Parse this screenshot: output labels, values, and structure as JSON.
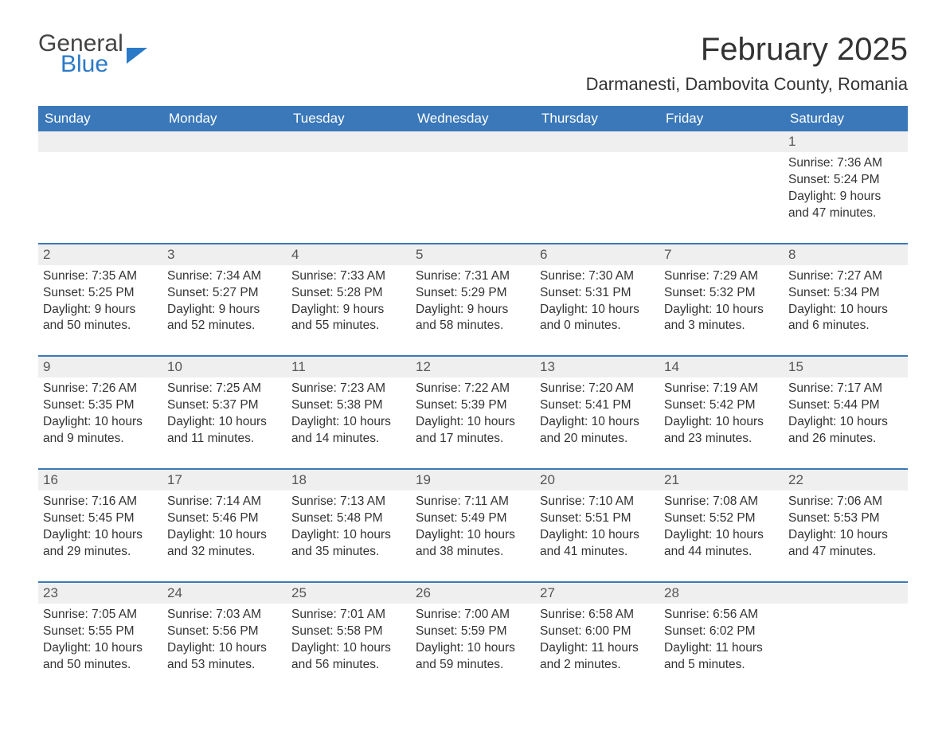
{
  "brand": {
    "part1": "General",
    "part2": "Blue"
  },
  "title": "February 2025",
  "location": "Darmanesti, Dambovita County, Romania",
  "colors": {
    "header_bg": "#3a78b9",
    "header_text": "#ffffff",
    "daynum_bg": "#efefef",
    "row_border": "#3a78b9",
    "body_text": "#333333",
    "brand_blue": "#2b7ac7"
  },
  "fonts": {
    "title_pt": 40,
    "location_pt": 22,
    "header_pt": 17,
    "body_pt": 15.5
  },
  "layout": {
    "columns": 7,
    "rows": 5
  },
  "weekdays": [
    "Sunday",
    "Monday",
    "Tuesday",
    "Wednesday",
    "Thursday",
    "Friday",
    "Saturday"
  ],
  "weeks": [
    [
      null,
      null,
      null,
      null,
      null,
      null,
      {
        "n": "1",
        "sr": "Sunrise: 7:36 AM",
        "ss": "Sunset: 5:24 PM",
        "dl": "Daylight: 9 hours and 47 minutes."
      }
    ],
    [
      {
        "n": "2",
        "sr": "Sunrise: 7:35 AM",
        "ss": "Sunset: 5:25 PM",
        "dl": "Daylight: 9 hours and 50 minutes."
      },
      {
        "n": "3",
        "sr": "Sunrise: 7:34 AM",
        "ss": "Sunset: 5:27 PM",
        "dl": "Daylight: 9 hours and 52 minutes."
      },
      {
        "n": "4",
        "sr": "Sunrise: 7:33 AM",
        "ss": "Sunset: 5:28 PM",
        "dl": "Daylight: 9 hours and 55 minutes."
      },
      {
        "n": "5",
        "sr": "Sunrise: 7:31 AM",
        "ss": "Sunset: 5:29 PM",
        "dl": "Daylight: 9 hours and 58 minutes."
      },
      {
        "n": "6",
        "sr": "Sunrise: 7:30 AM",
        "ss": "Sunset: 5:31 PM",
        "dl": "Daylight: 10 hours and 0 minutes."
      },
      {
        "n": "7",
        "sr": "Sunrise: 7:29 AM",
        "ss": "Sunset: 5:32 PM",
        "dl": "Daylight: 10 hours and 3 minutes."
      },
      {
        "n": "8",
        "sr": "Sunrise: 7:27 AM",
        "ss": "Sunset: 5:34 PM",
        "dl": "Daylight: 10 hours and 6 minutes."
      }
    ],
    [
      {
        "n": "9",
        "sr": "Sunrise: 7:26 AM",
        "ss": "Sunset: 5:35 PM",
        "dl": "Daylight: 10 hours and 9 minutes."
      },
      {
        "n": "10",
        "sr": "Sunrise: 7:25 AM",
        "ss": "Sunset: 5:37 PM",
        "dl": "Daylight: 10 hours and 11 minutes."
      },
      {
        "n": "11",
        "sr": "Sunrise: 7:23 AM",
        "ss": "Sunset: 5:38 PM",
        "dl": "Daylight: 10 hours and 14 minutes."
      },
      {
        "n": "12",
        "sr": "Sunrise: 7:22 AM",
        "ss": "Sunset: 5:39 PM",
        "dl": "Daylight: 10 hours and 17 minutes."
      },
      {
        "n": "13",
        "sr": "Sunrise: 7:20 AM",
        "ss": "Sunset: 5:41 PM",
        "dl": "Daylight: 10 hours and 20 minutes."
      },
      {
        "n": "14",
        "sr": "Sunrise: 7:19 AM",
        "ss": "Sunset: 5:42 PM",
        "dl": "Daylight: 10 hours and 23 minutes."
      },
      {
        "n": "15",
        "sr": "Sunrise: 7:17 AM",
        "ss": "Sunset: 5:44 PM",
        "dl": "Daylight: 10 hours and 26 minutes."
      }
    ],
    [
      {
        "n": "16",
        "sr": "Sunrise: 7:16 AM",
        "ss": "Sunset: 5:45 PM",
        "dl": "Daylight: 10 hours and 29 minutes."
      },
      {
        "n": "17",
        "sr": "Sunrise: 7:14 AM",
        "ss": "Sunset: 5:46 PM",
        "dl": "Daylight: 10 hours and 32 minutes."
      },
      {
        "n": "18",
        "sr": "Sunrise: 7:13 AM",
        "ss": "Sunset: 5:48 PM",
        "dl": "Daylight: 10 hours and 35 minutes."
      },
      {
        "n": "19",
        "sr": "Sunrise: 7:11 AM",
        "ss": "Sunset: 5:49 PM",
        "dl": "Daylight: 10 hours and 38 minutes."
      },
      {
        "n": "20",
        "sr": "Sunrise: 7:10 AM",
        "ss": "Sunset: 5:51 PM",
        "dl": "Daylight: 10 hours and 41 minutes."
      },
      {
        "n": "21",
        "sr": "Sunrise: 7:08 AM",
        "ss": "Sunset: 5:52 PM",
        "dl": "Daylight: 10 hours and 44 minutes."
      },
      {
        "n": "22",
        "sr": "Sunrise: 7:06 AM",
        "ss": "Sunset: 5:53 PM",
        "dl": "Daylight: 10 hours and 47 minutes."
      }
    ],
    [
      {
        "n": "23",
        "sr": "Sunrise: 7:05 AM",
        "ss": "Sunset: 5:55 PM",
        "dl": "Daylight: 10 hours and 50 minutes."
      },
      {
        "n": "24",
        "sr": "Sunrise: 7:03 AM",
        "ss": "Sunset: 5:56 PM",
        "dl": "Daylight: 10 hours and 53 minutes."
      },
      {
        "n": "25",
        "sr": "Sunrise: 7:01 AM",
        "ss": "Sunset: 5:58 PM",
        "dl": "Daylight: 10 hours and 56 minutes."
      },
      {
        "n": "26",
        "sr": "Sunrise: 7:00 AM",
        "ss": "Sunset: 5:59 PM",
        "dl": "Daylight: 10 hours and 59 minutes."
      },
      {
        "n": "27",
        "sr": "Sunrise: 6:58 AM",
        "ss": "Sunset: 6:00 PM",
        "dl": "Daylight: 11 hours and 2 minutes."
      },
      {
        "n": "28",
        "sr": "Sunrise: 6:56 AM",
        "ss": "Sunset: 6:02 PM",
        "dl": "Daylight: 11 hours and 5 minutes."
      },
      null
    ]
  ]
}
